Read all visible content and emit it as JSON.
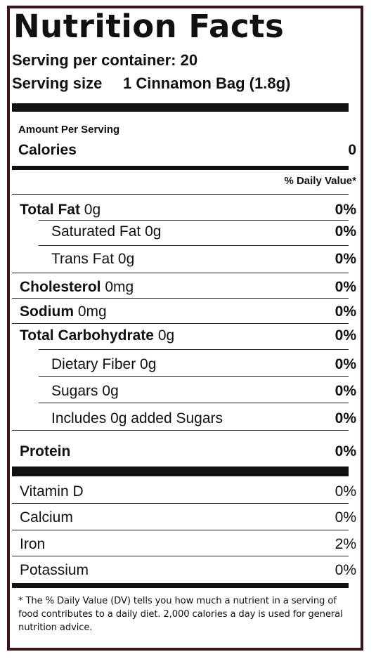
{
  "title": "Nutrition Facts",
  "servings_per_container": "Serving per container: 20",
  "serving_size_label": "Serving size",
  "serving_size_value": "1 Cinnamon Bag (1.8g)",
  "amount_per_serving": "Amount Per Serving",
  "calories_label": "Calories",
  "calories_value": "0",
  "daily_value_header": "% Daily Value*",
  "nutrients": [
    {
      "name": "Total Fat",
      "amount": "0g",
      "dv": "0%"
    },
    {
      "name": "Saturated Fat",
      "amount": "0g",
      "dv": "0%"
    },
    {
      "name": "Trans Fat",
      "amount": "0g",
      "dv": "0%"
    },
    {
      "name": "Cholesterol",
      "amount": "0mg",
      "dv": "0%"
    },
    {
      "name": "Sodium",
      "amount": "0mg",
      "dv": "0%"
    },
    {
      "name": "Total Carbohydrate",
      "amount": "0g",
      "dv": "0%"
    },
    {
      "name": "Dietary Fiber",
      "amount": "0g",
      "dv": "0%"
    },
    {
      "name": "Sugars",
      "amount": "0g",
      "dv": "0%"
    },
    {
      "name": "Includes 0g added Sugars",
      "amount": "",
      "dv": "0%"
    },
    {
      "name": "Protein",
      "amount": "",
      "dv": "0%"
    }
  ],
  "vitamins": [
    {
      "name": "Vitamin D",
      "dv": "0%"
    },
    {
      "name": "Calcium",
      "dv": "0%"
    },
    {
      "name": "Iron",
      "dv": "2%"
    },
    {
      "name": "Potassium",
      "dv": "0%"
    }
  ],
  "footnote": "* The % Daily Value (DV) tells you how much a nutrient in a serving of food contributes to a daily diet. 2,000 calories a day is used for general nutrition advice.",
  "colors": {
    "border": "#3a1616",
    "text": "#111111"
  }
}
